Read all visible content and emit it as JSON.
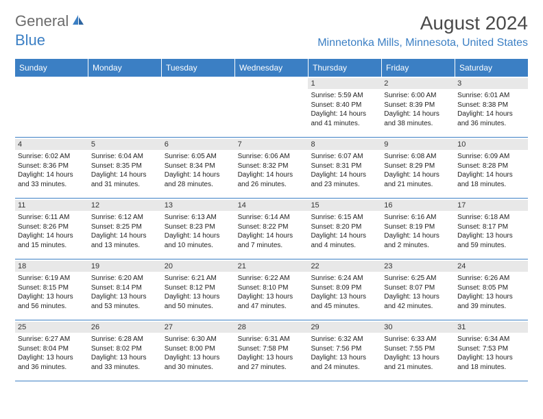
{
  "logo": {
    "general": "General",
    "blue": "Blue"
  },
  "title": "August 2024",
  "location": "Minnetonka Mills, Minnesota, United States",
  "colors": {
    "brand_blue": "#3b7fc4",
    "logo_gray": "#6b6b6b",
    "title_gray": "#4a4a4a",
    "daynum_bg": "#e8e8e8",
    "text": "#222222",
    "white": "#ffffff"
  },
  "dayheads": [
    "Sunday",
    "Monday",
    "Tuesday",
    "Wednesday",
    "Thursday",
    "Friday",
    "Saturday"
  ],
  "weeks": [
    [
      null,
      null,
      null,
      null,
      {
        "num": "1",
        "sunrise": "Sunrise: 5:59 AM",
        "sunset": "Sunset: 8:40 PM",
        "daylight1": "Daylight: 14 hours",
        "daylight2": "and 41 minutes."
      },
      {
        "num": "2",
        "sunrise": "Sunrise: 6:00 AM",
        "sunset": "Sunset: 8:39 PM",
        "daylight1": "Daylight: 14 hours",
        "daylight2": "and 38 minutes."
      },
      {
        "num": "3",
        "sunrise": "Sunrise: 6:01 AM",
        "sunset": "Sunset: 8:38 PM",
        "daylight1": "Daylight: 14 hours",
        "daylight2": "and 36 minutes."
      }
    ],
    [
      {
        "num": "4",
        "sunrise": "Sunrise: 6:02 AM",
        "sunset": "Sunset: 8:36 PM",
        "daylight1": "Daylight: 14 hours",
        "daylight2": "and 33 minutes."
      },
      {
        "num": "5",
        "sunrise": "Sunrise: 6:04 AM",
        "sunset": "Sunset: 8:35 PM",
        "daylight1": "Daylight: 14 hours",
        "daylight2": "and 31 minutes."
      },
      {
        "num": "6",
        "sunrise": "Sunrise: 6:05 AM",
        "sunset": "Sunset: 8:34 PM",
        "daylight1": "Daylight: 14 hours",
        "daylight2": "and 28 minutes."
      },
      {
        "num": "7",
        "sunrise": "Sunrise: 6:06 AM",
        "sunset": "Sunset: 8:32 PM",
        "daylight1": "Daylight: 14 hours",
        "daylight2": "and 26 minutes."
      },
      {
        "num": "8",
        "sunrise": "Sunrise: 6:07 AM",
        "sunset": "Sunset: 8:31 PM",
        "daylight1": "Daylight: 14 hours",
        "daylight2": "and 23 minutes."
      },
      {
        "num": "9",
        "sunrise": "Sunrise: 6:08 AM",
        "sunset": "Sunset: 8:29 PM",
        "daylight1": "Daylight: 14 hours",
        "daylight2": "and 21 minutes."
      },
      {
        "num": "10",
        "sunrise": "Sunrise: 6:09 AM",
        "sunset": "Sunset: 8:28 PM",
        "daylight1": "Daylight: 14 hours",
        "daylight2": "and 18 minutes."
      }
    ],
    [
      {
        "num": "11",
        "sunrise": "Sunrise: 6:11 AM",
        "sunset": "Sunset: 8:26 PM",
        "daylight1": "Daylight: 14 hours",
        "daylight2": "and 15 minutes."
      },
      {
        "num": "12",
        "sunrise": "Sunrise: 6:12 AM",
        "sunset": "Sunset: 8:25 PM",
        "daylight1": "Daylight: 14 hours",
        "daylight2": "and 13 minutes."
      },
      {
        "num": "13",
        "sunrise": "Sunrise: 6:13 AM",
        "sunset": "Sunset: 8:23 PM",
        "daylight1": "Daylight: 14 hours",
        "daylight2": "and 10 minutes."
      },
      {
        "num": "14",
        "sunrise": "Sunrise: 6:14 AM",
        "sunset": "Sunset: 8:22 PM",
        "daylight1": "Daylight: 14 hours",
        "daylight2": "and 7 minutes."
      },
      {
        "num": "15",
        "sunrise": "Sunrise: 6:15 AM",
        "sunset": "Sunset: 8:20 PM",
        "daylight1": "Daylight: 14 hours",
        "daylight2": "and 4 minutes."
      },
      {
        "num": "16",
        "sunrise": "Sunrise: 6:16 AM",
        "sunset": "Sunset: 8:19 PM",
        "daylight1": "Daylight: 14 hours",
        "daylight2": "and 2 minutes."
      },
      {
        "num": "17",
        "sunrise": "Sunrise: 6:18 AM",
        "sunset": "Sunset: 8:17 PM",
        "daylight1": "Daylight: 13 hours",
        "daylight2": "and 59 minutes."
      }
    ],
    [
      {
        "num": "18",
        "sunrise": "Sunrise: 6:19 AM",
        "sunset": "Sunset: 8:15 PM",
        "daylight1": "Daylight: 13 hours",
        "daylight2": "and 56 minutes."
      },
      {
        "num": "19",
        "sunrise": "Sunrise: 6:20 AM",
        "sunset": "Sunset: 8:14 PM",
        "daylight1": "Daylight: 13 hours",
        "daylight2": "and 53 minutes."
      },
      {
        "num": "20",
        "sunrise": "Sunrise: 6:21 AM",
        "sunset": "Sunset: 8:12 PM",
        "daylight1": "Daylight: 13 hours",
        "daylight2": "and 50 minutes."
      },
      {
        "num": "21",
        "sunrise": "Sunrise: 6:22 AM",
        "sunset": "Sunset: 8:10 PM",
        "daylight1": "Daylight: 13 hours",
        "daylight2": "and 47 minutes."
      },
      {
        "num": "22",
        "sunrise": "Sunrise: 6:24 AM",
        "sunset": "Sunset: 8:09 PM",
        "daylight1": "Daylight: 13 hours",
        "daylight2": "and 45 minutes."
      },
      {
        "num": "23",
        "sunrise": "Sunrise: 6:25 AM",
        "sunset": "Sunset: 8:07 PM",
        "daylight1": "Daylight: 13 hours",
        "daylight2": "and 42 minutes."
      },
      {
        "num": "24",
        "sunrise": "Sunrise: 6:26 AM",
        "sunset": "Sunset: 8:05 PM",
        "daylight1": "Daylight: 13 hours",
        "daylight2": "and 39 minutes."
      }
    ],
    [
      {
        "num": "25",
        "sunrise": "Sunrise: 6:27 AM",
        "sunset": "Sunset: 8:04 PM",
        "daylight1": "Daylight: 13 hours",
        "daylight2": "and 36 minutes."
      },
      {
        "num": "26",
        "sunrise": "Sunrise: 6:28 AM",
        "sunset": "Sunset: 8:02 PM",
        "daylight1": "Daylight: 13 hours",
        "daylight2": "and 33 minutes."
      },
      {
        "num": "27",
        "sunrise": "Sunrise: 6:30 AM",
        "sunset": "Sunset: 8:00 PM",
        "daylight1": "Daylight: 13 hours",
        "daylight2": "and 30 minutes."
      },
      {
        "num": "28",
        "sunrise": "Sunrise: 6:31 AM",
        "sunset": "Sunset: 7:58 PM",
        "daylight1": "Daylight: 13 hours",
        "daylight2": "and 27 minutes."
      },
      {
        "num": "29",
        "sunrise": "Sunrise: 6:32 AM",
        "sunset": "Sunset: 7:56 PM",
        "daylight1": "Daylight: 13 hours",
        "daylight2": "and 24 minutes."
      },
      {
        "num": "30",
        "sunrise": "Sunrise: 6:33 AM",
        "sunset": "Sunset: 7:55 PM",
        "daylight1": "Daylight: 13 hours",
        "daylight2": "and 21 minutes."
      },
      {
        "num": "31",
        "sunrise": "Sunrise: 6:34 AM",
        "sunset": "Sunset: 7:53 PM",
        "daylight1": "Daylight: 13 hours",
        "daylight2": "and 18 minutes."
      }
    ]
  ]
}
